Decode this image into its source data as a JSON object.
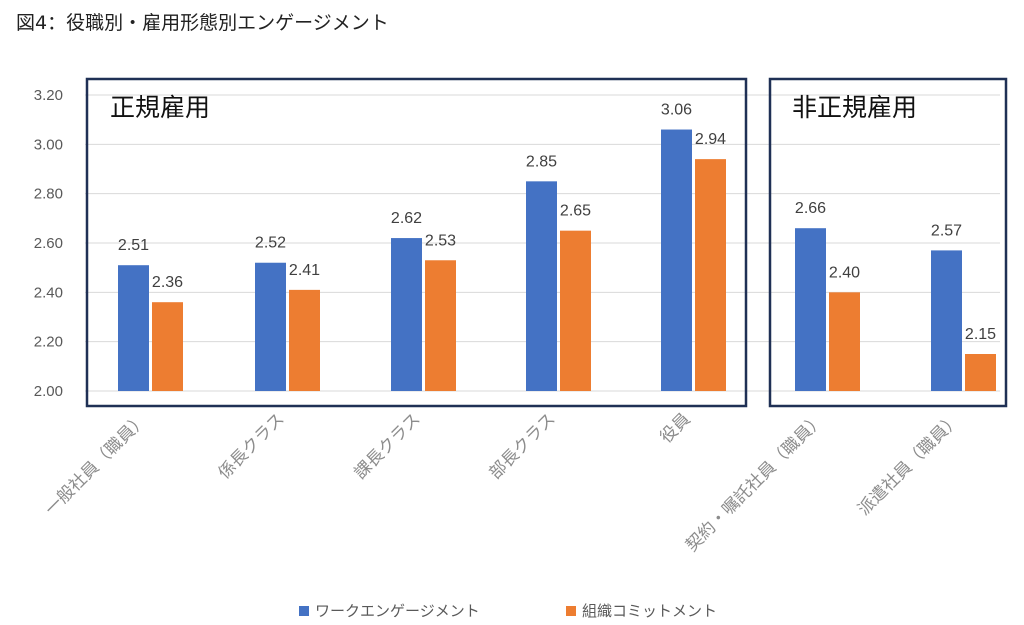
{
  "figure_title": "図4：役職別・雇用形態別エンゲージメント",
  "colors": {
    "engagement": "#4472C4",
    "commitment": "#ED7D31",
    "grid": "#d9d9d9",
    "box": "#1f3055"
  },
  "chart_data": {
    "type": "bar",
    "title": "図4：役職別・雇用形態別エンゲージメント",
    "xlabel": "",
    "ylabel": "",
    "ylim": [
      2.0,
      3.2
    ],
    "yticks": [
      "2.00",
      "2.20",
      "2.40",
      "2.60",
      "2.80",
      "3.00",
      "3.20"
    ],
    "categories": [
      "一般社員（職員）",
      "係長クラス",
      "課長クラス",
      "部長クラス",
      "役員",
      "契約・嘱託社員（職員）",
      "派遣社員（職員）"
    ],
    "series": [
      {
        "name": "ワークエンゲージメント",
        "color": "#4472C4",
        "values": [
          2.51,
          2.52,
          2.62,
          2.85,
          3.06,
          2.66,
          2.57
        ]
      },
      {
        "name": "組織コミットメント",
        "color": "#ED7D31",
        "values": [
          2.36,
          2.41,
          2.53,
          2.65,
          2.94,
          2.4,
          2.15
        ]
      }
    ],
    "groups": [
      {
        "label": "正規雇用",
        "categories": [
          "一般社員（職員）",
          "係長クラス",
          "課長クラス",
          "部長クラス",
          "役員"
        ]
      },
      {
        "label": "非正規雇用",
        "categories": [
          "契約・嘱託社員（職員）",
          "派遣社員（職員）"
        ]
      }
    ],
    "legend": {
      "position": "bottom"
    },
    "grid": true
  }
}
